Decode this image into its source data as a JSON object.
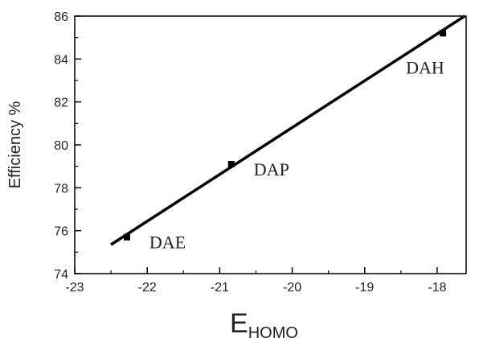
{
  "chart_data": {
    "type": "scatter",
    "title": "",
    "xlabel": "E",
    "xlabel_sub": "HOMO",
    "ylabel": "Efficiency %",
    "xlim": [
      -23,
      -17.6
    ],
    "ylim": [
      74,
      86
    ],
    "xticks": [
      "-23",
      "-22",
      "-21",
      "-20",
      "-19",
      "-18"
    ],
    "yticks": [
      "74",
      "76",
      "78",
      "80",
      "82",
      "84",
      "86"
    ],
    "grid": false,
    "points": [
      {
        "label": "DAE",
        "x": -22.28,
        "y": 75.7
      },
      {
        "label": "DAP",
        "x": -20.84,
        "y": 79.1
      },
      {
        "label": "DAH",
        "x": -17.92,
        "y": 85.2
      }
    ],
    "fit_line": {
      "x": [
        -22.5,
        -17.62
      ],
      "y": [
        75.35,
        86.0
      ]
    }
  }
}
